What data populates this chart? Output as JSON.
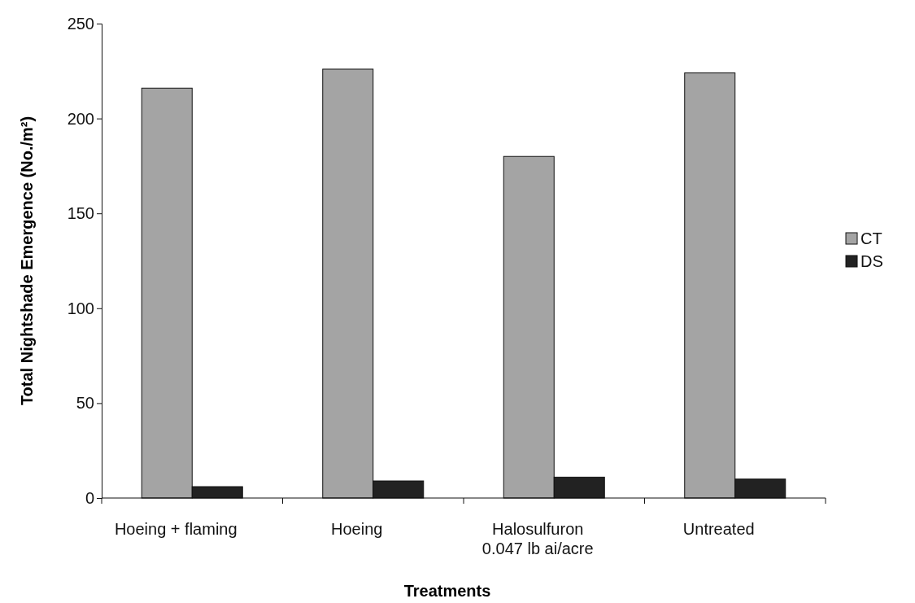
{
  "chart_data": {
    "type": "bar",
    "xlabel": "Treatments",
    "ylabel": "Total Nightshade Emergence (No./m²)",
    "categories": [
      "Hoeing + flaming",
      "Hoeing",
      "Halosulfuron\n0.047 lb ai/acre",
      "Untreated"
    ],
    "series": [
      {
        "name": "CT",
        "color": "#a4a4a4",
        "values": [
          216,
          226,
          180,
          224
        ]
      },
      {
        "name": "DS",
        "color": "#222222",
        "values": [
          6,
          9,
          11,
          10
        ]
      }
    ],
    "ylim": [
      0,
      250
    ],
    "yticks": [
      0,
      50,
      100,
      150,
      200,
      250
    ],
    "legend": "right"
  }
}
